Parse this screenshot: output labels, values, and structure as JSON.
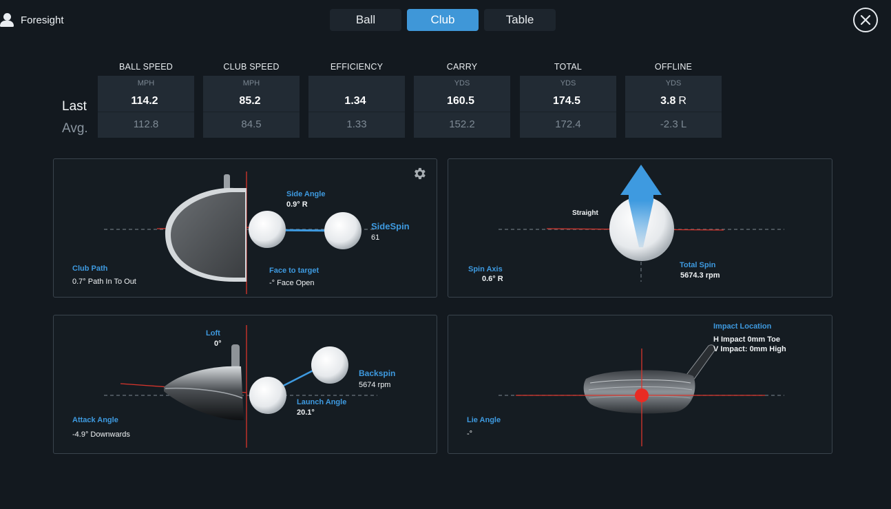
{
  "brand": {
    "label": "Foresight"
  },
  "tabs": [
    {
      "label": "Ball"
    },
    {
      "label": "Club"
    },
    {
      "label": "Table"
    }
  ],
  "active_tab": "Club",
  "rows": {
    "last": "Last",
    "avg": "Avg."
  },
  "stats": [
    {
      "header": "BALL SPEED",
      "unit": "MPH",
      "last": "114.2",
      "last_suffix": "",
      "avg": "112.8"
    },
    {
      "header": "CLUB SPEED",
      "unit": "MPH",
      "last": "85.2",
      "last_suffix": "",
      "avg": "84.5"
    },
    {
      "header": "EFFICIENCY",
      "unit": "",
      "last": "1.34",
      "last_suffix": "",
      "avg": "1.33"
    },
    {
      "header": "CARRY",
      "unit": "YDS",
      "last": "160.5",
      "last_suffix": "",
      "avg": "152.2"
    },
    {
      "header": "TOTAL",
      "unit": "YDS",
      "last": "174.5",
      "last_suffix": "",
      "avg": "172.4"
    },
    {
      "header": "OFFLINE",
      "unit": "YDS",
      "last": "3.8",
      "last_suffix": "R",
      "avg": "-2.3 L"
    }
  ],
  "panels": {
    "club_path": {
      "side_angle_label": "Side Angle",
      "side_angle_value": "0.9°  R",
      "sidespin_label": "SideSpin",
      "sidespin_value": "61",
      "club_path_label": "Club Path",
      "club_path_value": "0.7° Path In To Out",
      "face_label": "Face to target",
      "face_value": "-° Face Open"
    },
    "spin": {
      "straight_label": "Straight",
      "spin_axis_label": "Spin Axis",
      "spin_axis_value": "0.6°  R",
      "total_spin_label": "Total Spin",
      "total_spin_value": "5674.3 rpm"
    },
    "launch": {
      "loft_label": "Loft",
      "loft_value": "0°",
      "backspin_label": "Backspin",
      "backspin_value": "5674 rpm",
      "launch_angle_label": "Launch Angle",
      "launch_angle_value": "20.1°",
      "attack_angle_label": "Attack Angle",
      "attack_angle_value": "-4.9° Downwards"
    },
    "impact": {
      "impact_label": "Impact Location",
      "h_impact": "H Impact 0mm Toe",
      "v_impact": "V Impact: 0mm High",
      "lie_angle_label": "Lie Angle",
      "lie_angle_value": "-°"
    }
  },
  "colors": {
    "accent": "#3f97d8",
    "guide_red": "#d9352c",
    "highlight_blue": "#3e9ae0"
  },
  "icons": [
    "user-icon",
    "close-icon",
    "gear-icon"
  ]
}
